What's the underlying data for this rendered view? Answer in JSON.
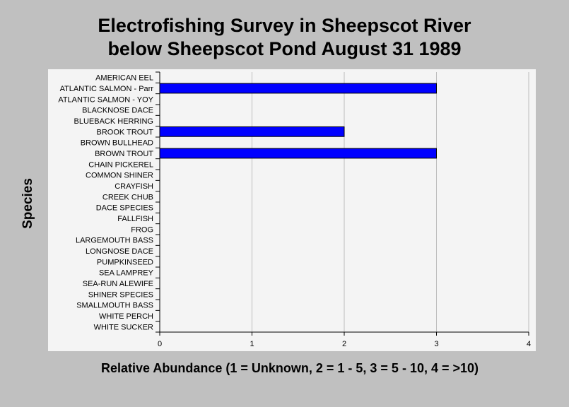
{
  "title_line1": "Electrofishing Survey in Sheepscot River",
  "title_line2": "below Sheepscot Pond August 31 1989",
  "chart_data": {
    "type": "bar",
    "orientation": "horizontal",
    "title": "Electrofishing Survey in Sheepscot River below Sheepscot Pond August 31 1989",
    "xlabel": "Relative Abundance (1 = Unknown, 2 = 1 - 5, 3 = 5 - 10, 4 = >10)",
    "ylabel": "Species",
    "xlim": [
      0,
      4
    ],
    "xticks": [
      "0",
      "1",
      "2",
      "3",
      "4"
    ],
    "grid": "vertical",
    "bar_color": "#0000ff",
    "categories": [
      "AMERICAN EEL",
      "ATLANTIC SALMON - Parr",
      "ATLANTIC SALMON - YOY",
      "BLACKNOSE DACE",
      "BLUEBACK HERRING",
      "BROOK TROUT",
      "BROWN BULLHEAD",
      "BROWN TROUT",
      "CHAIN PICKEREL",
      "COMMON SHINER",
      "CRAYFISH",
      "CREEK CHUB",
      "DACE SPECIES",
      "FALLFISH",
      "FROG",
      "LARGEMOUTH BASS",
      "LONGNOSE DACE",
      "PUMPKINSEED",
      "SEA LAMPREY",
      "SEA-RUN ALEWIFE",
      "SHINER SPECIES",
      "SMALLMOUTH BASS",
      "WHITE PERCH",
      "WHITE SUCKER"
    ],
    "values": [
      0,
      3,
      0,
      0,
      0,
      2,
      0,
      3,
      0,
      0,
      0,
      0,
      0,
      0,
      0,
      0,
      0,
      0,
      0,
      0,
      0,
      0,
      0,
      0
    ]
  }
}
